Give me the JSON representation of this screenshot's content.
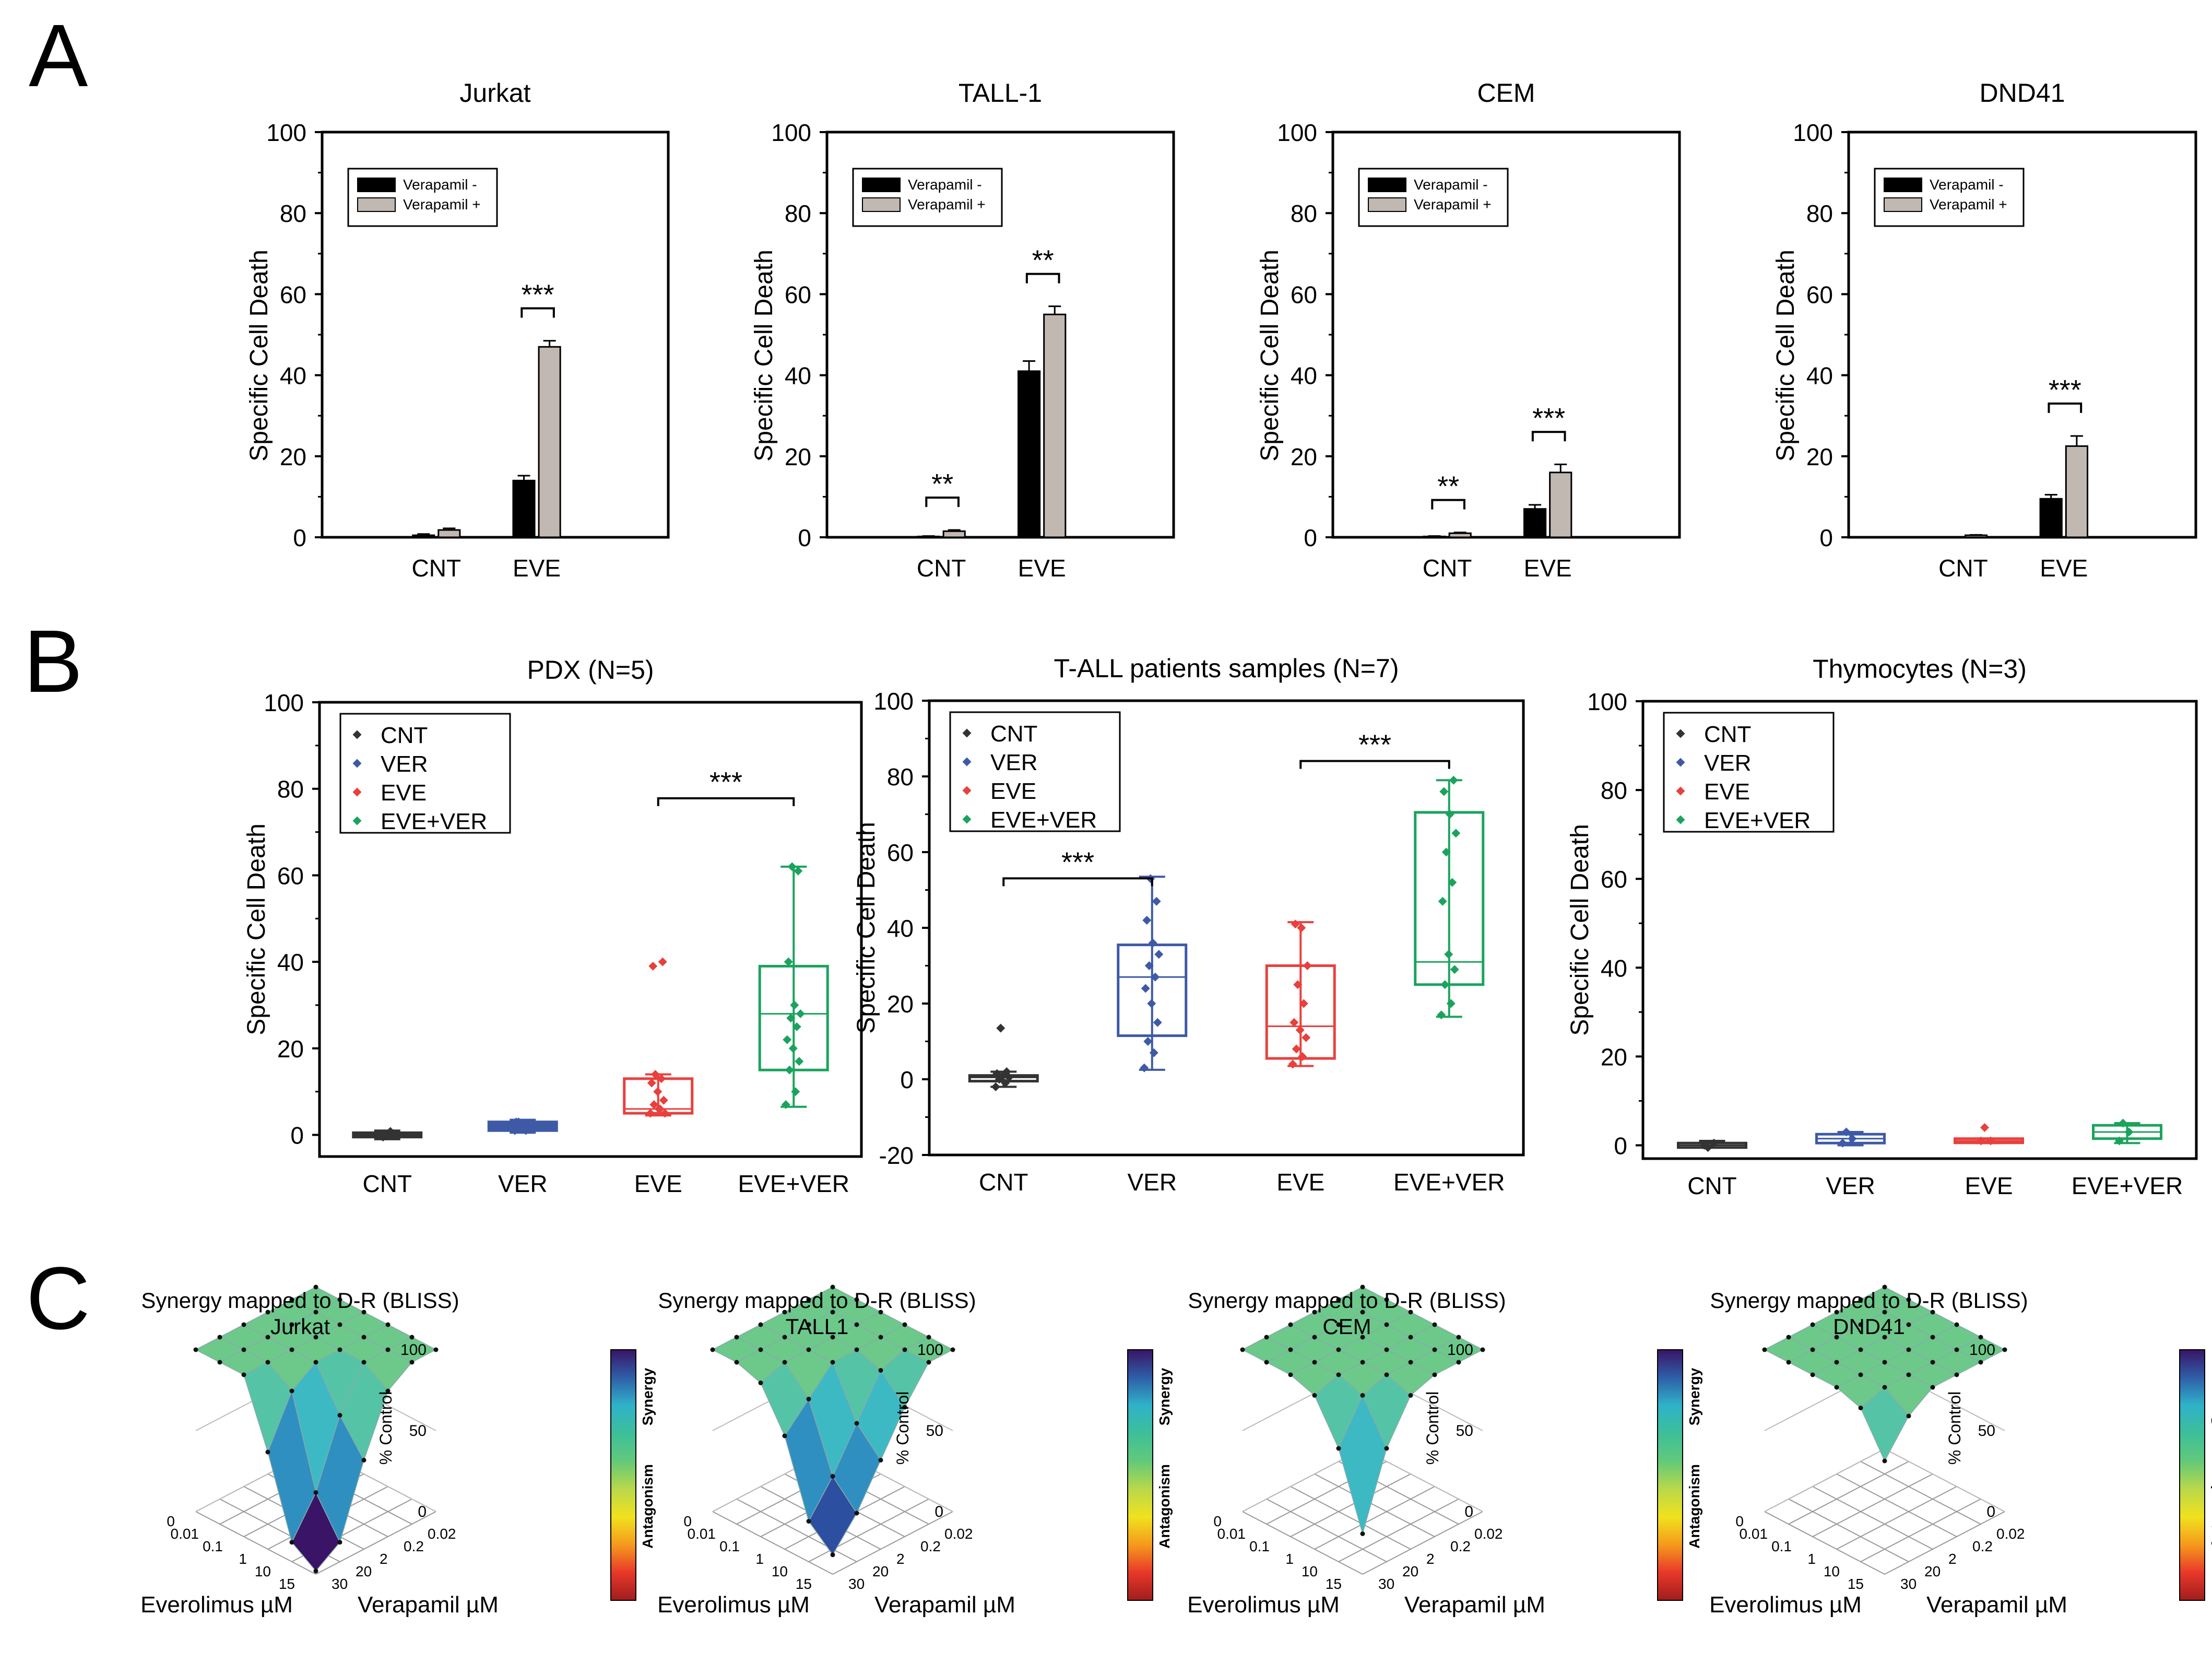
{
  "panels": {
    "a": "A",
    "b": "B",
    "c": "C"
  },
  "colors": {
    "black_bar": "#000000",
    "grey_bar": "#c2b8b2",
    "CNT": "#333333",
    "VER": "#3e5aa6",
    "EVE": "#e8403d",
    "EVE+VER": "#1ba35e",
    "colorbar": [
      "#3a1466",
      "#2f5ea8",
      "#2fb2c9",
      "#3dbf9a",
      "#62c97a",
      "#b9d84a",
      "#f0e21e",
      "#f59a1c",
      "#e8382a",
      "#a01d1d"
    ]
  },
  "chart_data": [
    {
      "id": "A1",
      "type": "bar",
      "title": "Jurkat",
      "ylabel": "Specific Cell Death",
      "ylim": [
        0,
        100
      ],
      "yticks": [
        0,
        20,
        40,
        60,
        80,
        100
      ],
      "categories": [
        "CNT",
        "EVE"
      ],
      "legend": [
        "Verapamil -",
        "Verapamil +"
      ],
      "series": [
        {
          "name": "Verapamil -",
          "values": [
            0.5,
            14
          ],
          "errors": [
            0.3,
            1.2
          ]
        },
        {
          "name": "Verapamil +",
          "values": [
            1.8,
            47
          ],
          "errors": [
            0.4,
            1.5
          ]
        }
      ],
      "sig": [
        {
          "category": 1,
          "label": "***"
        }
      ]
    },
    {
      "id": "A2",
      "type": "bar",
      "title": "TALL-1",
      "ylabel": "Specific Cell Death",
      "ylim": [
        0,
        100
      ],
      "yticks": [
        0,
        20,
        40,
        60,
        80,
        100
      ],
      "categories": [
        "CNT",
        "EVE"
      ],
      "legend": [
        "Verapamil -",
        "Verapamil +"
      ],
      "series": [
        {
          "name": "Verapamil -",
          "values": [
            0.2,
            41
          ],
          "errors": [
            0.1,
            2.5
          ]
        },
        {
          "name": "Verapamil +",
          "values": [
            1.5,
            55
          ],
          "errors": [
            0.3,
            2
          ]
        }
      ],
      "sig": [
        {
          "category": 0,
          "label": "**"
        },
        {
          "category": 1,
          "label": "**"
        }
      ]
    },
    {
      "id": "A3",
      "type": "bar",
      "title": "CEM",
      "ylabel": "Specific Cell Death",
      "ylim": [
        0,
        100
      ],
      "yticks": [
        0,
        20,
        40,
        60,
        80,
        100
      ],
      "categories": [
        "CNT",
        "EVE"
      ],
      "legend": [
        "Verapamil -",
        "Verapamil +"
      ],
      "series": [
        {
          "name": "Verapamil -",
          "values": [
            0.2,
            7
          ],
          "errors": [
            0.1,
            1
          ]
        },
        {
          "name": "Verapamil +",
          "values": [
            1,
            16
          ],
          "errors": [
            0.2,
            2
          ]
        }
      ],
      "sig": [
        {
          "category": 0,
          "label": "**"
        },
        {
          "category": 1,
          "label": "***"
        }
      ]
    },
    {
      "id": "A4",
      "type": "bar",
      "title": "DND41",
      "ylabel": "Specific Cell Death",
      "ylim": [
        0,
        100
      ],
      "yticks": [
        0,
        20,
        40,
        60,
        80,
        100
      ],
      "categories": [
        "CNT",
        "EVE"
      ],
      "legend": [
        "Verapamil -",
        "Verapamil +"
      ],
      "series": [
        {
          "name": "Verapamil -",
          "values": [
            0,
            9.5
          ],
          "errors": [
            0,
            1
          ]
        },
        {
          "name": "Verapamil +",
          "values": [
            0.5,
            22.5
          ],
          "errors": [
            0.1,
            2.5
          ]
        }
      ],
      "sig": [
        {
          "category": 1,
          "label": "***"
        }
      ]
    },
    {
      "id": "B1",
      "type": "box",
      "title": "PDX (N=5)",
      "ylabel": "Specific Cell Death",
      "ylim": [
        -5,
        100
      ],
      "yticks": [
        0,
        20,
        40,
        60,
        80,
        100
      ],
      "categories": [
        "CNT",
        "VER",
        "EVE",
        "EVE+VER"
      ],
      "legend": [
        "CNT",
        "VER",
        "EVE",
        "EVE+VER"
      ],
      "boxes": [
        {
          "q1": -0.5,
          "median": 0,
          "q3": 0.5,
          "min": -1,
          "max": 1,
          "points": [
            0,
            0.5,
            -0.5,
            0.3,
            0,
            -0.3,
            0.8,
            0.2
          ]
        },
        {
          "q1": 1,
          "median": 2,
          "q3": 3,
          "min": 0.5,
          "max": 3.5,
          "points": [
            1,
            2,
            3,
            1.5,
            2.5,
            3,
            1,
            2
          ]
        },
        {
          "q1": 5,
          "median": 6,
          "q3": 13,
          "min": 4.5,
          "max": 14,
          "points": [
            5,
            6,
            7,
            8,
            10,
            12,
            13,
            14,
            5,
            6,
            39,
            40
          ]
        },
        {
          "q1": 15,
          "median": 28,
          "q3": 39,
          "min": 6.5,
          "max": 62,
          "points": [
            7,
            10,
            15,
            17,
            20,
            22,
            25,
            27,
            28,
            30,
            40,
            61,
            62
          ]
        }
      ],
      "sig": [
        {
          "from": 2,
          "to": 3,
          "y": 76,
          "label": "***"
        }
      ]
    },
    {
      "id": "B2",
      "type": "box",
      "title": "T-ALL patients samples (N=7)",
      "ylabel": "Specific Cell Death",
      "ylim": [
        -20,
        100
      ],
      "yticks": [
        -20,
        0,
        20,
        40,
        60,
        80,
        100
      ],
      "categories": [
        "CNT",
        "VER",
        "EVE",
        "EVE+VER"
      ],
      "legend": [
        "CNT",
        "VER",
        "EVE",
        "EVE+VER"
      ],
      "boxes": [
        {
          "q1": -0.5,
          "median": 0.5,
          "q3": 1,
          "min": -2,
          "max": 2,
          "points": [
            -2,
            -1,
            0,
            0.5,
            1,
            1.5,
            2,
            13.5
          ]
        },
        {
          "q1": 11.5,
          "median": 27,
          "q3": 35.5,
          "min": 2.5,
          "max": 53.5,
          "points": [
            3,
            7,
            10,
            15,
            20,
            24,
            27,
            30,
            33,
            36,
            42,
            47,
            53
          ]
        },
        {
          "q1": 5.5,
          "median": 14,
          "q3": 30,
          "min": 3.5,
          "max": 41.5,
          "points": [
            4,
            6,
            8,
            11,
            13,
            15,
            20,
            25,
            30,
            40,
            41
          ]
        },
        {
          "q1": 25,
          "median": 31,
          "q3": 70.5,
          "min": 16.5,
          "max": 79,
          "points": [
            17,
            20,
            25,
            29,
            33,
            47,
            52,
            60,
            65,
            70,
            76,
            79
          ]
        }
      ],
      "sig": [
        {
          "from": 0,
          "to": 1,
          "y": 51,
          "label": "***"
        },
        {
          "from": 2,
          "to": 3,
          "y": 82,
          "label": "***"
        }
      ]
    },
    {
      "id": "B3",
      "type": "box",
      "title": "Thymocytes (N=3)",
      "ylabel": "Specific Cell Death",
      "ylim": [
        -3,
        100
      ],
      "yticks": [
        0,
        20,
        40,
        60,
        80,
        100
      ],
      "categories": [
        "CNT",
        "VER",
        "EVE",
        "EVE+VER"
      ],
      "legend": [
        "CNT",
        "VER",
        "EVE",
        "EVE+VER"
      ],
      "boxes": [
        {
          "q1": -0.5,
          "median": 0,
          "q3": 0.5,
          "min": -0.5,
          "max": 1,
          "points": [
            0,
            0.5,
            -0.5
          ]
        },
        {
          "q1": 0.5,
          "median": 1.5,
          "q3": 2.5,
          "min": 0,
          "max": 3,
          "points": [
            0.5,
            1.5,
            3
          ]
        },
        {
          "q1": 0.8,
          "median": 1,
          "q3": 1.5,
          "min": 0.5,
          "max": 1.5,
          "points": [
            1,
            1,
            4
          ]
        },
        {
          "q1": 1.5,
          "median": 3,
          "q3": 4.5,
          "min": 0.5,
          "max": 5,
          "points": [
            1,
            3,
            5
          ]
        }
      ],
      "sig": []
    },
    {
      "id": "C1",
      "type": "surface",
      "title": "Synergy mapped to D-R (BLISS)",
      "subtitle": "Jurkat",
      "zlabel": "% Control",
      "zticks": [
        0,
        50,
        100
      ],
      "x_label": "Everolimus µM",
      "x_ticks": [
        0,
        0.01,
        0.1,
        1,
        10,
        15
      ],
      "y_label": "Verapamil µM",
      "y_ticks": [
        0.02,
        0.2,
        2,
        20,
        30
      ],
      "colorbar_top": "Synergy",
      "colorbar_bottom": "Antagonism",
      "grid": [
        [
          100,
          100,
          100,
          100,
          100,
          100
        ],
        [
          100,
          100,
          100,
          100,
          100,
          100
        ],
        [
          100,
          100,
          100,
          100,
          100,
          100
        ],
        [
          100,
          100,
          100,
          100,
          90,
          60
        ],
        [
          100,
          100,
          100,
          75,
          35,
          12
        ],
        [
          100,
          100,
          90,
          55,
          12,
          2
        ]
      ]
    },
    {
      "id": "C2",
      "type": "surface",
      "title": "Synergy mapped to D-R (BLISS)",
      "subtitle": "TALL1",
      "zlabel": "% Control",
      "zticks": [
        0,
        50,
        100
      ],
      "x_label": "Everolimus µM",
      "x_ticks": [
        0,
        0.01,
        0.1,
        1,
        10,
        15
      ],
      "y_label": "Verapamil µM",
      "y_ticks": [
        0.02,
        0.2,
        2,
        20,
        30
      ],
      "colorbar_top": "Synergy",
      "colorbar_bottom": "Antagonism",
      "grid": [
        [
          100,
          100,
          100,
          100,
          100,
          100
        ],
        [
          100,
          100,
          100,
          100,
          100,
          100
        ],
        [
          100,
          100,
          100,
          100,
          100,
          95
        ],
        [
          100,
          100,
          100,
          100,
          85,
          70
        ],
        [
          100,
          100,
          95,
          70,
          45,
          25
        ],
        [
          100,
          100,
          80,
          55,
          30,
          12
        ]
      ]
    },
    {
      "id": "C3",
      "type": "surface",
      "title": "Synergy mapped to D-R (BLISS)",
      "subtitle": "CEM",
      "zlabel": "% Control",
      "zticks": [
        0,
        50,
        100
      ],
      "x_label": "Everolimus µM",
      "x_ticks": [
        0,
        0.01,
        0.1,
        1,
        10,
        15
      ],
      "y_label": "Verapamil µM",
      "y_ticks": [
        0.02,
        0.2,
        2,
        20,
        30
      ],
      "colorbar_top": "Synergy",
      "colorbar_bottom": "Antagonism",
      "grid": [
        [
          100,
          100,
          100,
          100,
          100,
          100
        ],
        [
          100,
          100,
          100,
          100,
          100,
          100
        ],
        [
          100,
          100,
          100,
          100,
          100,
          100
        ],
        [
          100,
          100,
          100,
          100,
          100,
          95
        ],
        [
          100,
          100,
          100,
          100,
          95,
          70
        ],
        [
          100,
          100,
          100,
          95,
          70,
          25
        ]
      ]
    },
    {
      "id": "C4",
      "type": "surface",
      "title": "Synergy mapped to D-R (BLISS)",
      "subtitle": "DND41",
      "zlabel": "% Control",
      "zticks": [
        0,
        50,
        100
      ],
      "x_label": "Everolimus µM",
      "x_ticks": [
        0,
        0.01,
        0.1,
        1,
        10,
        15
      ],
      "y_label": "Verapamil µM",
      "y_ticks": [
        0.02,
        0.2,
        2,
        20,
        30
      ],
      "colorbar_top": "Synergy",
      "colorbar_bottom": "Antagonism",
      "grid": [
        [
          100,
          100,
          100,
          100,
          100,
          100
        ],
        [
          100,
          100,
          100,
          100,
          100,
          100
        ],
        [
          100,
          100,
          100,
          100,
          100,
          100
        ],
        [
          100,
          100,
          100,
          100,
          100,
          100
        ],
        [
          100,
          100,
          100,
          100,
          100,
          95
        ],
        [
          100,
          100,
          100,
          100,
          90,
          70
        ]
      ]
    }
  ]
}
